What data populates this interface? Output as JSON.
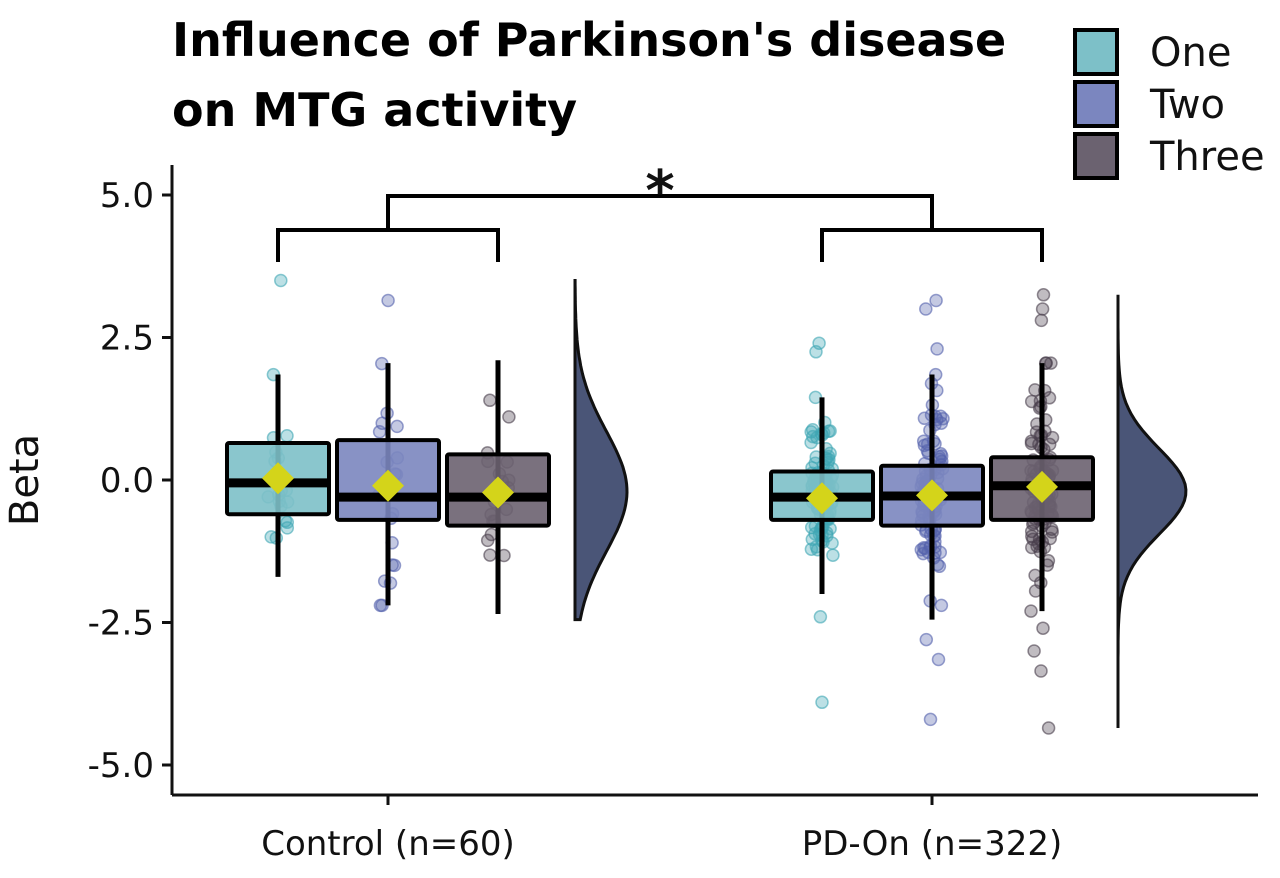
{
  "chart_data": {
    "type": "raincloud",
    "title_lines": [
      "Influence of Parkinson's disease",
      "on MTG activity"
    ],
    "xlabel": "",
    "ylabel": "Beta",
    "ylim": [
      -5.5,
      5.5
    ],
    "y_ticks": [
      "5.0",
      "2.5",
      "0.0",
      "-2.5",
      "-5.0"
    ],
    "y_tick_values": [
      5.0,
      2.5,
      0.0,
      -2.5,
      -5.0
    ],
    "groups": [
      "Control (n=60)",
      "PD-On (n=322)"
    ],
    "legend": {
      "position": "top-right",
      "entries": [
        "One",
        "Two",
        "Three"
      ]
    },
    "series_colors": {
      "One": "#7dc0c8",
      "Two": "#7b86bf",
      "Three": "#6b6270"
    },
    "point_colors": {
      "One": "#3fa7b4",
      "Two": "#5563ad",
      "Three": "#4a3f4d"
    },
    "mean_marker_color": "#d4d41a",
    "cloud_color": "#4a5577",
    "grid": false,
    "significance": {
      "label": "*",
      "between": [
        "Control (n=60)",
        "PD-On (n=322)"
      ]
    },
    "boxes": [
      {
        "group": "Control (n=60)",
        "series": "One",
        "min": -1.7,
        "q1": -0.6,
        "median": -0.05,
        "q3": 0.65,
        "max": 1.85,
        "mean": 0.03
      },
      {
        "group": "Control (n=60)",
        "series": "Two",
        "min": -2.2,
        "q1": -0.7,
        "median": -0.3,
        "q3": 0.7,
        "max": 2.05,
        "mean": -0.1
      },
      {
        "group": "Control (n=60)",
        "series": "Three",
        "min": -2.35,
        "q1": -0.8,
        "median": -0.3,
        "q3": 0.45,
        "max": 2.1,
        "mean": -0.22
      },
      {
        "group": "PD-On (n=322)",
        "series": "One",
        "min": -2.0,
        "q1": -0.7,
        "median": -0.3,
        "q3": 0.15,
        "max": 1.45,
        "mean": -0.32
      },
      {
        "group": "PD-On (n=322)",
        "series": "Two",
        "min": -2.45,
        "q1": -0.8,
        "median": -0.28,
        "q3": 0.25,
        "max": 1.85,
        "mean": -0.27
      },
      {
        "group": "PD-On (n=322)",
        "series": "Three",
        "min": -2.3,
        "q1": -0.7,
        "median": -0.1,
        "q3": 0.4,
        "max": 2.05,
        "mean": -0.12
      }
    ],
    "outliers": [
      {
        "group": "Control (n=60)",
        "series": "One",
        "values": [
          3.5
        ]
      },
      {
        "group": "Control (n=60)",
        "series": "Two",
        "values": [
          3.15
        ]
      },
      {
        "group": "PD-On (n=322)",
        "series": "One",
        "values": [
          2.4,
          2.25,
          -2.4,
          -3.9
        ]
      },
      {
        "group": "PD-On (n=322)",
        "series": "Two",
        "values": [
          3.15,
          3.0,
          2.3,
          -2.8,
          -3.15,
          -4.2
        ]
      },
      {
        "group": "PD-On (n=322)",
        "series": "Three",
        "values": [
          3.25,
          3.0,
          2.8,
          -2.6,
          -3.0,
          -3.35,
          -4.35
        ]
      }
    ],
    "clouds": [
      {
        "group": "Control (n=60)",
        "range": [
          -2.45,
          3.5
        ]
      },
      {
        "group": "PD-On (n=322)",
        "range": [
          -4.35,
          3.25
        ]
      }
    ]
  }
}
